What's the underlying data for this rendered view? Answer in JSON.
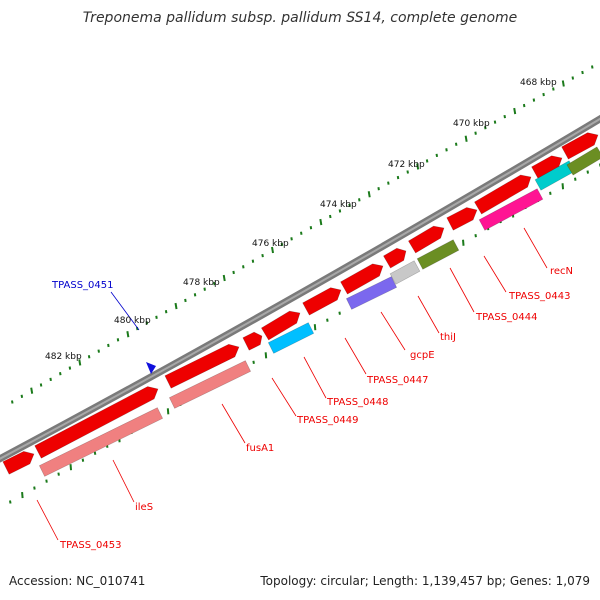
{
  "title": "Treponema pallidum subsp. pallidum SS14, complete genome",
  "accession": "Accession: NC_010741",
  "summary": "Topology: circular; Length: 1,139,457 bp; Genes: 1,079",
  "colors": {
    "backbone": "#8a8a8a",
    "forward_gene": "#ee0000",
    "tick": "#1b7a1b",
    "label_line": "#ee0000",
    "highlight": "#0000cc"
  },
  "tick_labels": [
    "468 kbp",
    "470 kbp",
    "472 kbp",
    "474 kbp",
    "476 kbp",
    "478 kbp",
    "480 kbp",
    "482 kbp"
  ],
  "gene_labels": [
    {
      "text": "recN",
      "color": "#ee0000"
    },
    {
      "text": "TPASS_0443",
      "color": "#ee0000"
    },
    {
      "text": "TPASS_0444",
      "color": "#ee0000"
    },
    {
      "text": "thiJ",
      "color": "#ee0000"
    },
    {
      "text": "gcpE",
      "color": "#ee0000"
    },
    {
      "text": "TPASS_0447",
      "color": "#ee0000"
    },
    {
      "text": "TPASS_0448",
      "color": "#ee0000"
    },
    {
      "text": "TPASS_0449",
      "color": "#ee0000"
    },
    {
      "text": "fusA1",
      "color": "#ee0000"
    },
    {
      "text": "ileS",
      "color": "#ee0000"
    },
    {
      "text": "TPASS_0453",
      "color": "#ee0000"
    },
    {
      "text": "TPASS_0451",
      "color": "#0000cc"
    }
  ],
  "cds_features": [
    {
      "color": "#00cccc"
    },
    {
      "color": "#ff1493"
    },
    {
      "color": "#6b8e23"
    },
    {
      "color": "#c8c8c8"
    },
    {
      "color": "#7b68ee"
    },
    {
      "color": "#00bfff"
    },
    {
      "color": "#f08080"
    },
    {
      "color": "#f08080"
    }
  ]
}
